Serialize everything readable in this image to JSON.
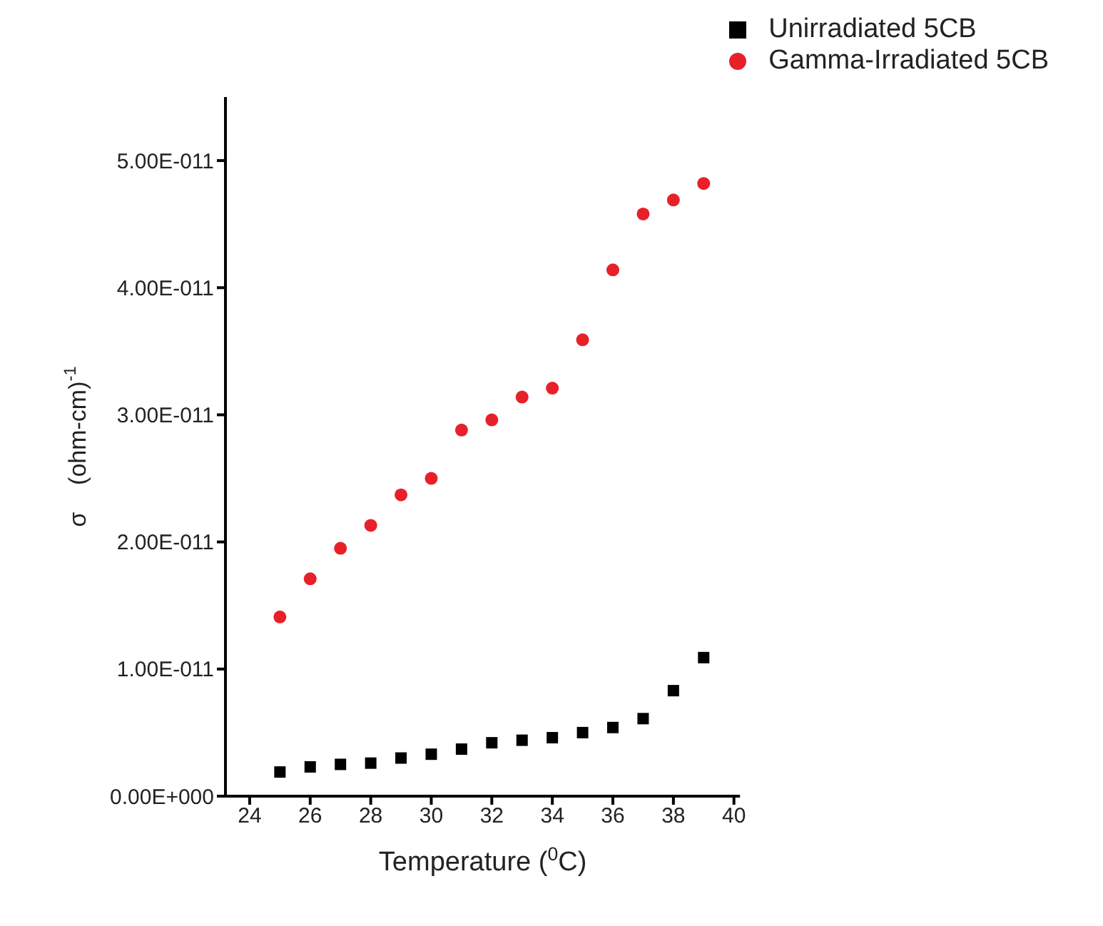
{
  "chart_data": {
    "type": "scatter",
    "xlabel": "Temperature ($^{0}$C)",
    "ylabel": "σ    (ohm-cm)$^{-1}$",
    "xlim": [
      23.2,
      40.2
    ],
    "xticks": [
      24,
      26,
      28,
      30,
      32,
      34,
      36,
      38,
      40
    ],
    "ylim": [
      0,
      5.5e-11
    ],
    "yticks": [
      {
        "value": 0,
        "label": "0.00E+000"
      },
      {
        "value": 1e-11,
        "label": "1.00E-011"
      },
      {
        "value": 2e-11,
        "label": "2.00E-011"
      },
      {
        "value": 3e-11,
        "label": "3.00E-011"
      },
      {
        "value": 4e-11,
        "label": "4.00E-011"
      },
      {
        "value": 5e-11,
        "label": "5.00E-011"
      }
    ],
    "x": [
      25,
      26,
      27,
      28,
      29,
      30,
      31,
      32,
      33,
      34,
      35,
      36,
      37,
      38,
      39
    ],
    "legend": "top right",
    "grid": false,
    "series": [
      {
        "name": "Unirradiated 5CB",
        "color": "#000000",
        "marker": "square",
        "values": [
          1.9e-12,
          2.3e-12,
          2.5e-12,
          2.6e-12,
          3e-12,
          3.3e-12,
          3.7e-12,
          4.2e-12,
          4.4e-12,
          4.6e-12,
          5e-12,
          5.4e-12,
          6.1e-12,
          8.3e-12,
          1.09e-11
        ]
      },
      {
        "name": "Gamma-Irradiated 5CB",
        "color": "#e8202a",
        "marker": "circle",
        "values": [
          1.41e-11,
          1.71e-11,
          1.95e-11,
          2.13e-11,
          2.37e-11,
          2.5e-11,
          2.88e-11,
          2.96e-11,
          3.14e-11,
          3.21e-11,
          3.59e-11,
          4.14e-11,
          4.58e-11,
          4.69e-11,
          4.82e-11
        ]
      }
    ]
  }
}
